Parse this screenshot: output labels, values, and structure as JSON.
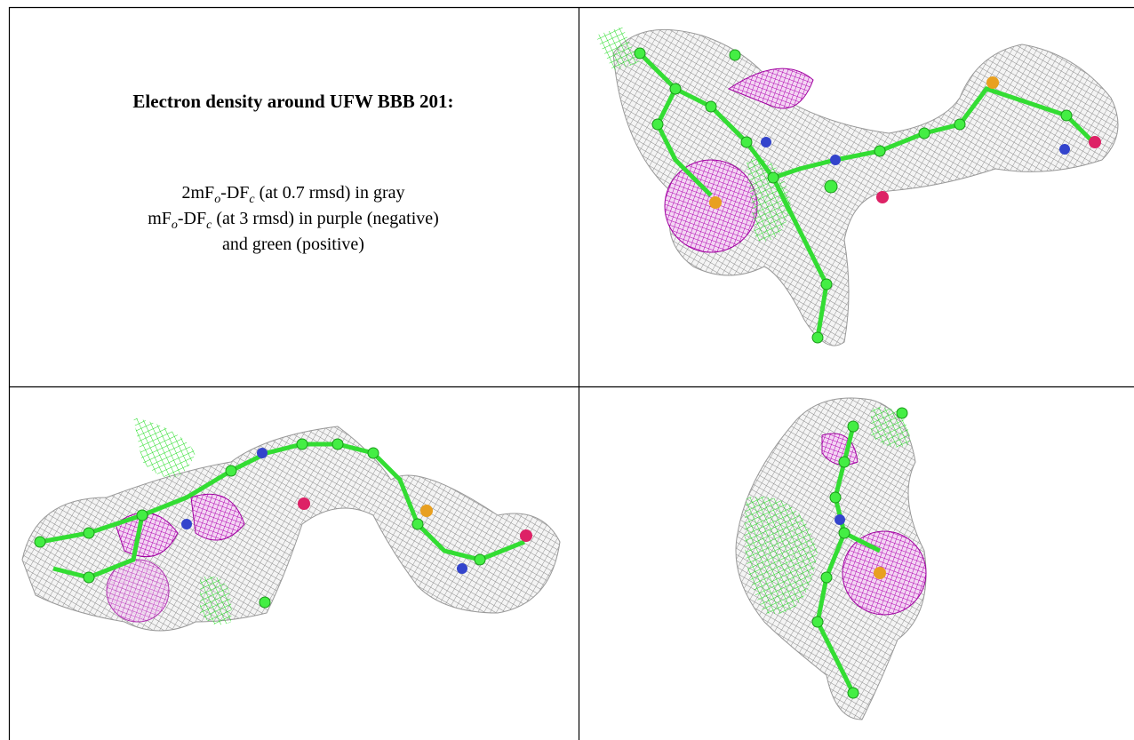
{
  "header": {
    "title": "Electron density around UFW BBB 201:"
  },
  "description": {
    "lines": [
      [
        {
          "text": "2mF"
        },
        {
          "text": "o",
          "subscript": true
        },
        {
          "text": "-DF"
        },
        {
          "text": "c",
          "subscript": true
        },
        {
          "text": " (at 0.7 rmsd) in gray"
        }
      ],
      [
        {
          "text": "mF"
        },
        {
          "text": "o",
          "subscript": true
        },
        {
          "text": "-DF"
        },
        {
          "text": "c",
          "subscript": true
        },
        {
          "text": " (at 3 rmsd) in purple (negative)"
        }
      ],
      [
        {
          "text": "and green (positive)"
        }
      ]
    ]
  }
}
